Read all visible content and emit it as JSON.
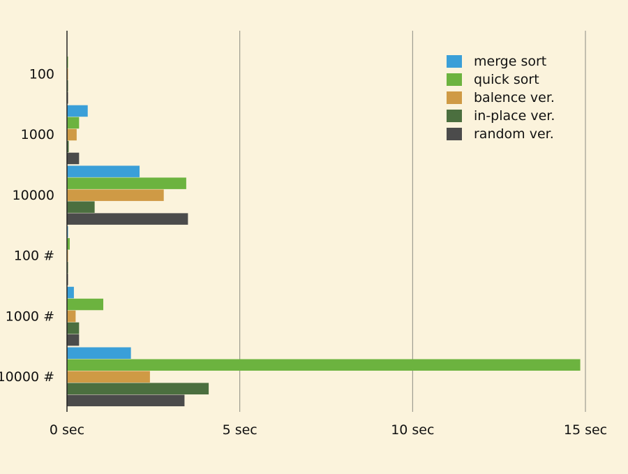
{
  "chart_data": {
    "type": "bar",
    "orientation": "horizontal",
    "title": "",
    "xlabel": "",
    "ylabel": "",
    "categories": [
      "100",
      "1000",
      "10000",
      "100 #",
      "1000 #",
      "10000 #"
    ],
    "series": [
      {
        "name": "merge sort",
        "color": "#3a9fd8",
        "values": [
          0.0,
          0.6,
          2.1,
          0.02,
          0.2,
          1.85
        ]
      },
      {
        "name": "quick sort",
        "color": "#6cb33f",
        "values": [
          0.02,
          0.35,
          3.45,
          0.08,
          1.05,
          14.85
        ]
      },
      {
        "name": "balence ver.",
        "color": "#cf9a45",
        "values": [
          0.03,
          0.28,
          2.8,
          0.03,
          0.25,
          2.4
        ]
      },
      {
        "name": "in-place ver.",
        "color": "#4b6f3f",
        "values": [
          0.01,
          0.05,
          0.8,
          0.01,
          0.35,
          4.1
        ]
      },
      {
        "name": "random ver.",
        "color": "#4b4b4b",
        "values": [
          0.03,
          0.35,
          3.5,
          0.03,
          0.35,
          3.4
        ]
      }
    ],
    "xlim": [
      0,
      15
    ],
    "xticks": [
      0,
      5,
      10,
      15
    ],
    "xtick_labels": [
      "0 sec",
      "5 sec",
      "10 sec",
      "15 sec"
    ],
    "grid": "vertical",
    "legend_position": "top-right"
  }
}
